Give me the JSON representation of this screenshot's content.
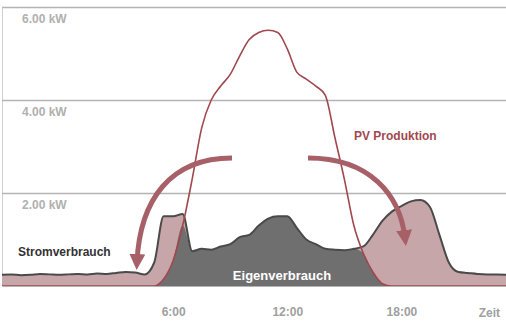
{
  "chart_data": {
    "type": "area",
    "x": [
      -3,
      -2.5,
      -2,
      -1.5,
      -1,
      -0.5,
      0,
      0.5,
      1,
      1.5,
      2,
      2.5,
      3,
      3.5,
      4,
      4.5,
      5,
      5.5,
      6,
      6.5,
      7,
      7.5,
      8,
      8.5,
      9,
      9.5,
      10,
      10.5,
      11,
      11.5,
      12,
      12.5,
      13,
      13.5,
      14,
      14.5,
      15,
      15.5,
      16,
      16.5,
      17,
      17.5,
      18,
      18.5,
      19,
      19.5,
      20,
      20.5,
      21,
      21.5,
      22,
      22.5,
      23,
      23.5
    ],
    "xlim": [
      -3,
      23.5
    ],
    "xticks": [
      {
        "value": 6,
        "label": "6:00"
      },
      {
        "value": 12,
        "label": "12:00"
      },
      {
        "value": 18,
        "label": "18:00"
      }
    ],
    "x_label": "Zeit",
    "ylim": [
      0,
      6
    ],
    "yticks": [
      {
        "value": 2,
        "label": "2.00 kW"
      },
      {
        "value": 4,
        "label": "4.00 kW"
      },
      {
        "value": 6,
        "label": "6.00 kW"
      }
    ],
    "grid": true,
    "series": [
      {
        "name": "Stromverbrauch",
        "color": "#4a4a4a",
        "values": [
          0.24,
          0.25,
          0.23,
          0.24,
          0.26,
          0.25,
          0.24,
          0.25,
          0.26,
          0.25,
          0.27,
          0.26,
          0.28,
          0.3,
          0.29,
          0.25,
          0.5,
          1.5,
          1.5,
          1.55,
          0.75,
          0.8,
          0.78,
          0.85,
          0.9,
          1.05,
          1.1,
          1.3,
          1.45,
          1.5,
          1.5,
          1.25,
          1.0,
          0.9,
          0.8,
          0.78,
          0.77,
          0.8,
          0.85,
          1.1,
          1.4,
          1.6,
          1.72,
          1.82,
          1.85,
          1.7,
          1.1,
          0.5,
          0.3,
          0.28,
          0.26,
          0.25,
          0.25,
          0.24
        ]
      },
      {
        "name": "PV Produktion",
        "color": "#a1484e",
        "values": [
          0,
          0,
          0,
          0,
          0,
          0,
          0,
          0,
          0,
          0,
          0,
          0,
          0,
          0,
          0,
          0,
          0,
          0.15,
          0.55,
          1.3,
          2.3,
          3.4,
          4.0,
          4.3,
          4.55,
          4.95,
          5.3,
          5.45,
          5.5,
          5.45,
          5.1,
          4.6,
          4.45,
          4.3,
          4.1,
          3.2,
          2.3,
          1.3,
          0.7,
          0.3,
          0.05,
          0,
          0,
          0,
          0,
          0,
          0,
          0,
          0,
          0,
          0,
          0,
          0,
          0
        ]
      }
    ],
    "annotations": [
      "Eigenverbrauch"
    ]
  }
}
